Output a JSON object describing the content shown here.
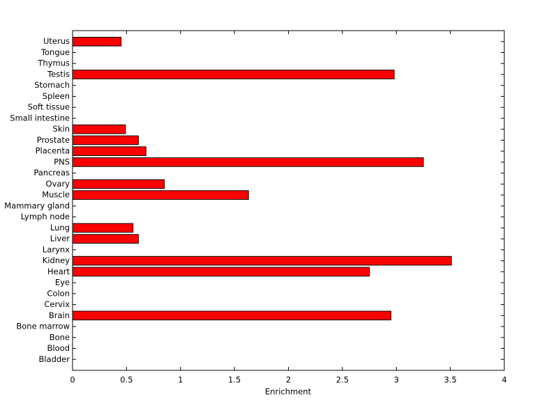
{
  "chart_data": {
    "type": "barh",
    "xlabel": "Enrichment",
    "categories": [
      "Bladder",
      "Blood",
      "Bone",
      "Bone marrow",
      "Brain",
      "Cervix",
      "Colon",
      "Eye",
      "Heart",
      "Kidney",
      "Larynx",
      "Liver",
      "Lung",
      "Lymph node",
      "Mammary gland",
      "Muscle",
      "Ovary",
      "Pancreas",
      "PNS",
      "Placenta",
      "Prostate",
      "Skin",
      "Small intestine",
      "Soft tissue",
      "Spleen",
      "Stomach",
      "Testis",
      "Thymus",
      "Tongue",
      "Uterus"
    ],
    "values": [
      0,
      0,
      0,
      0,
      2.95,
      0,
      0,
      0,
      2.75,
      3.51,
      0,
      0.61,
      0.56,
      0,
      0,
      1.63,
      0.85,
      0,
      3.25,
      0.68,
      0.61,
      0.49,
      0,
      0,
      0,
      0,
      2.98,
      0,
      0,
      0.45
    ],
    "color": "#ff0000",
    "xlim": [
      0,
      4
    ],
    "xticks": [
      0,
      0.5,
      1,
      1.5,
      2,
      2.5,
      3,
      3.5,
      4
    ],
    "grid": false
  }
}
